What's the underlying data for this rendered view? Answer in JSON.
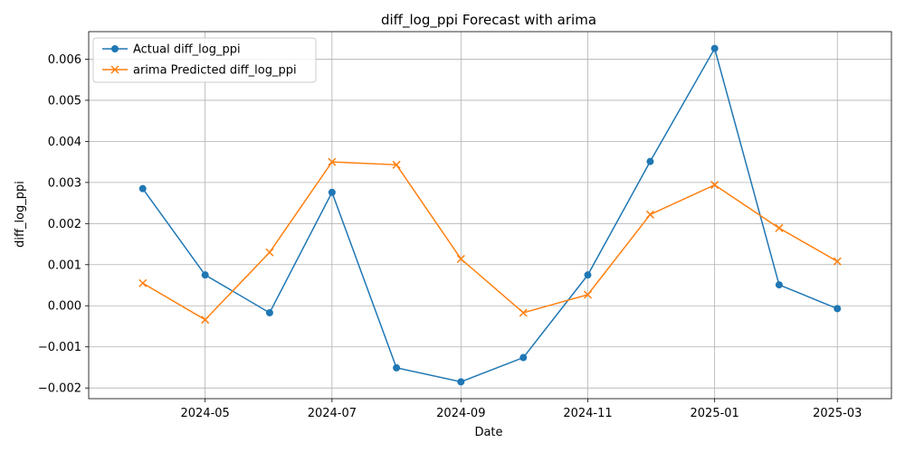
{
  "chart_data": {
    "type": "line",
    "title": "diff_log_ppi Forecast with arima",
    "xlabel": "Date",
    "ylabel": "diff_log_ppi",
    "x": [
      "2024-04-01",
      "2024-05-01",
      "2024-06-01",
      "2024-07-01",
      "2024-08-01",
      "2024-09-01",
      "2024-10-01",
      "2024-11-01",
      "2024-12-01",
      "2025-01-01",
      "2025-02-01",
      "2025-03-01"
    ],
    "x_ticks": [
      {
        "date": "2024-05-01",
        "label": "2024-05"
      },
      {
        "date": "2024-07-01",
        "label": "2024-07"
      },
      {
        "date": "2024-09-01",
        "label": "2024-09"
      },
      {
        "date": "2024-11-01",
        "label": "2024-11"
      },
      {
        "date": "2025-01-01",
        "label": "2025-01"
      },
      {
        "date": "2025-03-01",
        "label": "2025-03"
      }
    ],
    "y_ticks": [
      {
        "value": -0.002,
        "label": "−0.002"
      },
      {
        "value": -0.001,
        "label": "−0.001"
      },
      {
        "value": 0.0,
        "label": "0.000"
      },
      {
        "value": 0.001,
        "label": "0.001"
      },
      {
        "value": 0.002,
        "label": "0.002"
      },
      {
        "value": 0.003,
        "label": "0.003"
      },
      {
        "value": 0.004,
        "label": "0.004"
      },
      {
        "value": 0.005,
        "label": "0.005"
      },
      {
        "value": 0.006,
        "label": "0.006"
      }
    ],
    "ylim": [
      -0.00226,
      0.00667
    ],
    "xlim": [
      "2024-03-06",
      "2025-03-27"
    ],
    "grid": true,
    "legend_position": "top-left",
    "series": [
      {
        "name": "Actual diff_log_ppi",
        "color": "#1f77b4",
        "marker": "circle",
        "values": [
          0.00285,
          0.00075,
          -0.00017,
          0.00276,
          -0.00151,
          -0.00185,
          -0.00126,
          0.00075,
          0.00351,
          0.00626,
          0.00051,
          -7e-05
        ]
      },
      {
        "name": "arima Predicted diff_log_ppi",
        "color": "#ff7f0e",
        "marker": "x",
        "values": [
          0.00055,
          -0.00034,
          0.0013,
          0.0035,
          0.00343,
          0.00114,
          -0.00017,
          0.00027,
          0.00222,
          0.00294,
          0.00189,
          0.00108
        ]
      }
    ]
  }
}
